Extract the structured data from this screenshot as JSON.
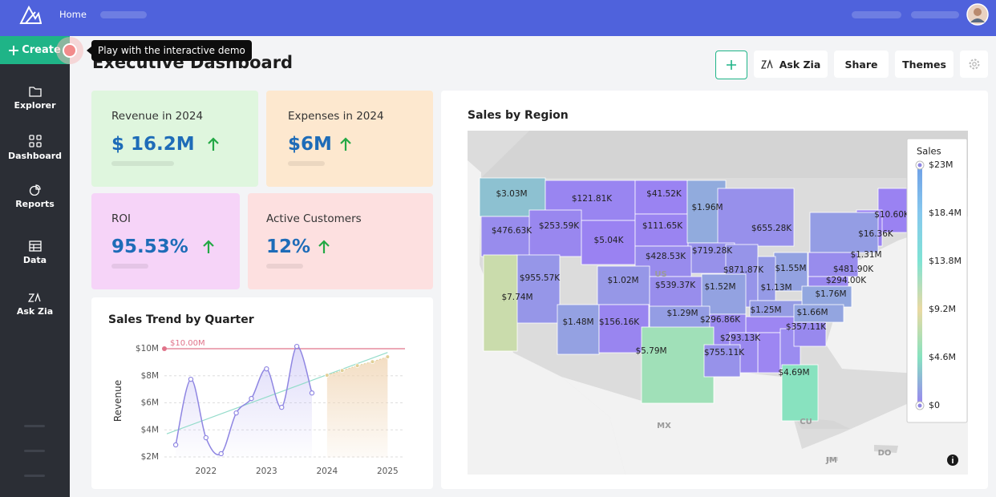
{
  "topbar": {
    "home": "Home"
  },
  "sidebar": {
    "create": "Create",
    "items": [
      "Explorer",
      "Dashboard",
      "Reports",
      "Data",
      "Ask Zia"
    ]
  },
  "tooltip": "Play with the interactive demo",
  "title": "Executive Dashboard",
  "toolbar": [
    "Ask Zia",
    "Share",
    "Themes"
  ],
  "kpis": [
    {
      "label": "Revenue in 2024",
      "value": "$ 16.2M"
    },
    {
      "label": "Expenses in 2024",
      "value": "$6M"
    },
    {
      "label": "ROI",
      "value": "95.53%"
    },
    {
      "label": "Active Customers",
      "value": "12%"
    }
  ],
  "trend": {
    "type": "line",
    "title": "Sales Trend by Quarter",
    "y_label": "Revenue",
    "color": "#8f86e2",
    "x": [
      2021.5,
      2021.75,
      2022,
      2022.25,
      2022.5,
      2022.75,
      2023,
      2023.25,
      2023.5,
      2023.75
    ],
    "values": [
      2.89,
      7.74,
      3.42,
      2.24,
      5.25,
      6.32,
      8.51,
      5.67,
      10.17,
      6.73
    ],
    "forecast": {
      "color": "#e0cf96",
      "x": [
        2024,
        2024.25,
        2024.5,
        2024.75,
        2025
      ],
      "values": [
        8.04,
        8.39,
        8.75,
        9.04,
        9.4
      ]
    },
    "reference": {
      "value": 10,
      "label": "$10.00M",
      "color": "#e0738a"
    },
    "xlim": [
      2021.3,
      2025.3
    ],
    "xticks": [
      2022,
      2023,
      2024,
      2025
    ],
    "ylim": [
      1.6,
      10.5
    ],
    "yticks": [
      {
        "value": 2,
        "label": "$2M"
      },
      {
        "value": 4,
        "label": "$4M"
      },
      {
        "value": 6,
        "label": "$6M"
      },
      {
        "value": 8,
        "label": "$8M"
      },
      {
        "value": 10,
        "label": "$10M"
      }
    ],
    "grid": true
  },
  "map": {
    "type": "choropleth",
    "title": "Sales by Region",
    "values": [
      3.03,
      0.12181,
      0.04152,
      0.47663,
      0.25359,
      0.00504,
      0.11165,
      1.96,
      0.0106,
      0.01636,
      0.65528,
      1.31,
      0.71928,
      0.42853,
      0.95557,
      1.02,
      0.53937,
      0.87187,
      1.55,
      0.4819,
      0.294,
      7.74,
      1.52,
      1.13,
      1.76,
      1.29,
      1.48,
      0.15616,
      1.25,
      1.66,
      0.29686,
      0.35711,
      0.29313,
      5.79,
      0.75511,
      4.69
    ],
    "value_labels": [
      "$3.03M",
      "$121.81K",
      "$41.52K",
      "$476.63K",
      "$253.59K",
      "$5.04K",
      "$111.65K",
      "$1.96M",
      "$10.60K",
      "$16.36K",
      "$655.28K",
      "$1.31M",
      "$719.28K",
      "$428.53K",
      "$955.57K",
      "$1.02M",
      "$539.37K",
      "$871.87K",
      "$1.55M",
      "$481.90K",
      "$294.00K",
      "$7.74M",
      "$1.52M",
      "$1.13M",
      "$1.76M",
      "$1.29M",
      "$1.48M",
      "$156.16K",
      "$1.25M",
      "$1.66M",
      "$296.86K",
      "$357.11K",
      "$293.13K",
      "$5.79M",
      "$755.11K",
      "$4.69M"
    ],
    "places": [
      "US",
      "MX",
      "CU",
      "JM",
      "DO"
    ],
    "legend": {
      "title": "Sales",
      "ticks": [
        {
          "value": 23,
          "label": "$23M"
        },
        {
          "value": 18.4,
          "label": "$18.4M"
        },
        {
          "value": 13.8,
          "label": "$13.8M"
        },
        {
          "value": 9.2,
          "label": "$9.2M"
        },
        {
          "value": 4.6,
          "label": "$4.6M"
        },
        {
          "value": 0,
          "label": "$0"
        }
      ],
      "colors": [
        "#6e9fe6",
        "#86c8ee",
        "#7fe3d4",
        "#ead9a2",
        "#86e2c0",
        "#9a82f2"
      ]
    }
  }
}
